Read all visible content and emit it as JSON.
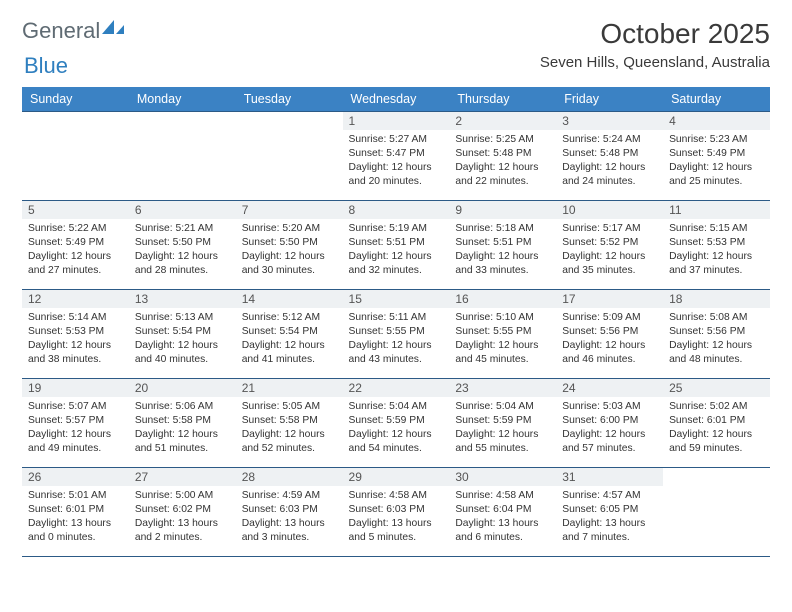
{
  "brand": {
    "general": "General",
    "blue": "Blue",
    "tri_color": "#2f7fbf"
  },
  "title": "October 2025",
  "location": "Seven Hills, Queensland, Australia",
  "colors": {
    "header_bg": "#3b82c4",
    "header_text": "#ffffff",
    "daynum_bg": "#eef1f3",
    "grid_border": "#2c5a86",
    "text": "#333333",
    "page_bg": "#ffffff"
  },
  "day_headers": [
    "Sunday",
    "Monday",
    "Tuesday",
    "Wednesday",
    "Thursday",
    "Friday",
    "Saturday"
  ],
  "weeks": [
    [
      {
        "blank": true
      },
      {
        "blank": true
      },
      {
        "blank": true
      },
      {
        "n": "1",
        "sr": "5:27 AM",
        "ss": "5:47 PM",
        "dl": "12 hours and 20 minutes."
      },
      {
        "n": "2",
        "sr": "5:25 AM",
        "ss": "5:48 PM",
        "dl": "12 hours and 22 minutes."
      },
      {
        "n": "3",
        "sr": "5:24 AM",
        "ss": "5:48 PM",
        "dl": "12 hours and 24 minutes."
      },
      {
        "n": "4",
        "sr": "5:23 AM",
        "ss": "5:49 PM",
        "dl": "12 hours and 25 minutes."
      }
    ],
    [
      {
        "n": "5",
        "sr": "5:22 AM",
        "ss": "5:49 PM",
        "dl": "12 hours and 27 minutes."
      },
      {
        "n": "6",
        "sr": "5:21 AM",
        "ss": "5:50 PM",
        "dl": "12 hours and 28 minutes."
      },
      {
        "n": "7",
        "sr": "5:20 AM",
        "ss": "5:50 PM",
        "dl": "12 hours and 30 minutes."
      },
      {
        "n": "8",
        "sr": "5:19 AM",
        "ss": "5:51 PM",
        "dl": "12 hours and 32 minutes."
      },
      {
        "n": "9",
        "sr": "5:18 AM",
        "ss": "5:51 PM",
        "dl": "12 hours and 33 minutes."
      },
      {
        "n": "10",
        "sr": "5:17 AM",
        "ss": "5:52 PM",
        "dl": "12 hours and 35 minutes."
      },
      {
        "n": "11",
        "sr": "5:15 AM",
        "ss": "5:53 PM",
        "dl": "12 hours and 37 minutes."
      }
    ],
    [
      {
        "n": "12",
        "sr": "5:14 AM",
        "ss": "5:53 PM",
        "dl": "12 hours and 38 minutes."
      },
      {
        "n": "13",
        "sr": "5:13 AM",
        "ss": "5:54 PM",
        "dl": "12 hours and 40 minutes."
      },
      {
        "n": "14",
        "sr": "5:12 AM",
        "ss": "5:54 PM",
        "dl": "12 hours and 41 minutes."
      },
      {
        "n": "15",
        "sr": "5:11 AM",
        "ss": "5:55 PM",
        "dl": "12 hours and 43 minutes."
      },
      {
        "n": "16",
        "sr": "5:10 AM",
        "ss": "5:55 PM",
        "dl": "12 hours and 45 minutes."
      },
      {
        "n": "17",
        "sr": "5:09 AM",
        "ss": "5:56 PM",
        "dl": "12 hours and 46 minutes."
      },
      {
        "n": "18",
        "sr": "5:08 AM",
        "ss": "5:56 PM",
        "dl": "12 hours and 48 minutes."
      }
    ],
    [
      {
        "n": "19",
        "sr": "5:07 AM",
        "ss": "5:57 PM",
        "dl": "12 hours and 49 minutes."
      },
      {
        "n": "20",
        "sr": "5:06 AM",
        "ss": "5:58 PM",
        "dl": "12 hours and 51 minutes."
      },
      {
        "n": "21",
        "sr": "5:05 AM",
        "ss": "5:58 PM",
        "dl": "12 hours and 52 minutes."
      },
      {
        "n": "22",
        "sr": "5:04 AM",
        "ss": "5:59 PM",
        "dl": "12 hours and 54 minutes."
      },
      {
        "n": "23",
        "sr": "5:04 AM",
        "ss": "5:59 PM",
        "dl": "12 hours and 55 minutes."
      },
      {
        "n": "24",
        "sr": "5:03 AM",
        "ss": "6:00 PM",
        "dl": "12 hours and 57 minutes."
      },
      {
        "n": "25",
        "sr": "5:02 AM",
        "ss": "6:01 PM",
        "dl": "12 hours and 59 minutes."
      }
    ],
    [
      {
        "n": "26",
        "sr": "5:01 AM",
        "ss": "6:01 PM",
        "dl": "13 hours and 0 minutes."
      },
      {
        "n": "27",
        "sr": "5:00 AM",
        "ss": "6:02 PM",
        "dl": "13 hours and 2 minutes."
      },
      {
        "n": "28",
        "sr": "4:59 AM",
        "ss": "6:03 PM",
        "dl": "13 hours and 3 minutes."
      },
      {
        "n": "29",
        "sr": "4:58 AM",
        "ss": "6:03 PM",
        "dl": "13 hours and 5 minutes."
      },
      {
        "n": "30",
        "sr": "4:58 AM",
        "ss": "6:04 PM",
        "dl": "13 hours and 6 minutes."
      },
      {
        "n": "31",
        "sr": "4:57 AM",
        "ss": "6:05 PM",
        "dl": "13 hours and 7 minutes."
      },
      {
        "blank": true
      }
    ]
  ],
  "labels": {
    "sunrise": "Sunrise: ",
    "sunset": "Sunset: ",
    "daylight": "Daylight: "
  }
}
